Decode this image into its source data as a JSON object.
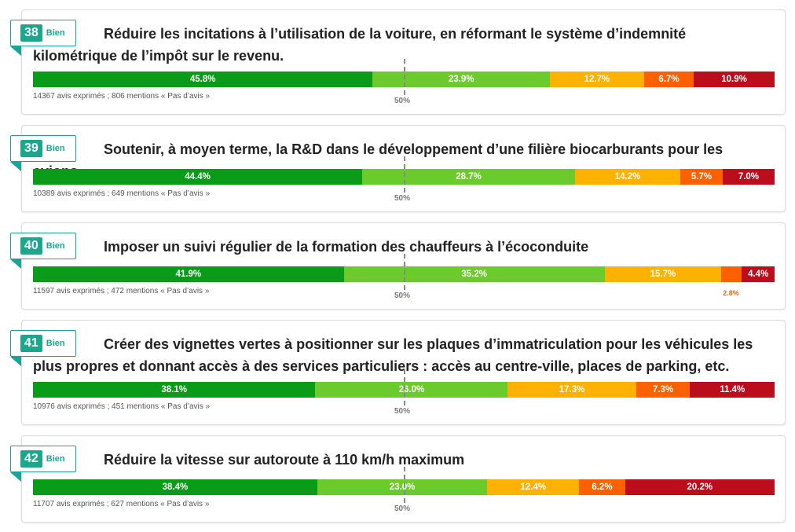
{
  "colors": {
    "very_good": "#0a9b19",
    "good": "#6ccb2c",
    "average": "#fdb100",
    "bad": "#fb6101",
    "very_bad": "#bb0d1b",
    "accent": "#1ca78c"
  },
  "midpoint_label": "50%",
  "chart_data": [
    {
      "type": "bar",
      "stacked": true,
      "rank": "38",
      "mention": "Bien",
      "title": "Réduire les incitations à l’utilisation de la voiture, en réformant le système d’indemnité kilométrique de l’impôt sur le revenu.",
      "values": [
        45.8,
        23.9,
        12.7,
        6.7,
        10.9
      ],
      "labels": [
        "45.8%",
        "23.9%",
        "12.7%",
        "6.7%",
        "10.9%"
      ],
      "counts_text": "14367 avis exprimés ; 806 mentions « Pas d’avis »"
    },
    {
      "type": "bar",
      "stacked": true,
      "rank": "39",
      "mention": "Bien",
      "title": "Soutenir, à moyen terme, la R&D dans le développement d’une filière biocarburants pour les avions",
      "values": [
        44.4,
        28.7,
        14.2,
        5.7,
        7.0
      ],
      "labels": [
        "44.4%",
        "28.7%",
        "14.2%",
        "5.7%",
        "7.0%"
      ],
      "counts_text": "10389 avis exprimés ; 649 mentions « Pas d’avis »"
    },
    {
      "type": "bar",
      "stacked": true,
      "rank": "40",
      "mention": "Bien",
      "title": "Imposer un suivi régulier de la formation des chauffeurs à l’écoconduite",
      "values": [
        41.9,
        35.2,
        15.7,
        2.8,
        4.4
      ],
      "labels": [
        "41.9%",
        "35.2%",
        "15.7%",
        "",
        "4.4%"
      ],
      "outside_label": "2.8%",
      "counts_text": "11597 avis exprimés ; 472 mentions « Pas d’avis »"
    },
    {
      "type": "bar",
      "stacked": true,
      "rank": "41",
      "mention": "Bien",
      "title": "Créer des vignettes vertes à positionner sur les plaques d’immatriculation pour les véhicules les plus propres et donnant accès à des services particuliers : accès au centre-ville, places de parking, etc.",
      "values": [
        38.1,
        26.0,
        17.3,
        7.3,
        11.4
      ],
      "labels": [
        "38.1%",
        "26.0%",
        "17.3%",
        "7.3%",
        "11.4%"
      ],
      "counts_text": "10976 avis exprimés ; 451 mentions « Pas d’avis »"
    },
    {
      "type": "bar",
      "stacked": true,
      "rank": "42",
      "mention": "Bien",
      "title": "Réduire la vitesse sur autoroute à 110 km/h maximum",
      "values": [
        38.4,
        23.0,
        12.4,
        6.2,
        20.2
      ],
      "labels": [
        "38.4%",
        "23.0%",
        "12.4%",
        "6.2%",
        "20.2%"
      ],
      "counts_text": "11707 avis exprimés ; 627 mentions « Pas d’avis »"
    }
  ]
}
